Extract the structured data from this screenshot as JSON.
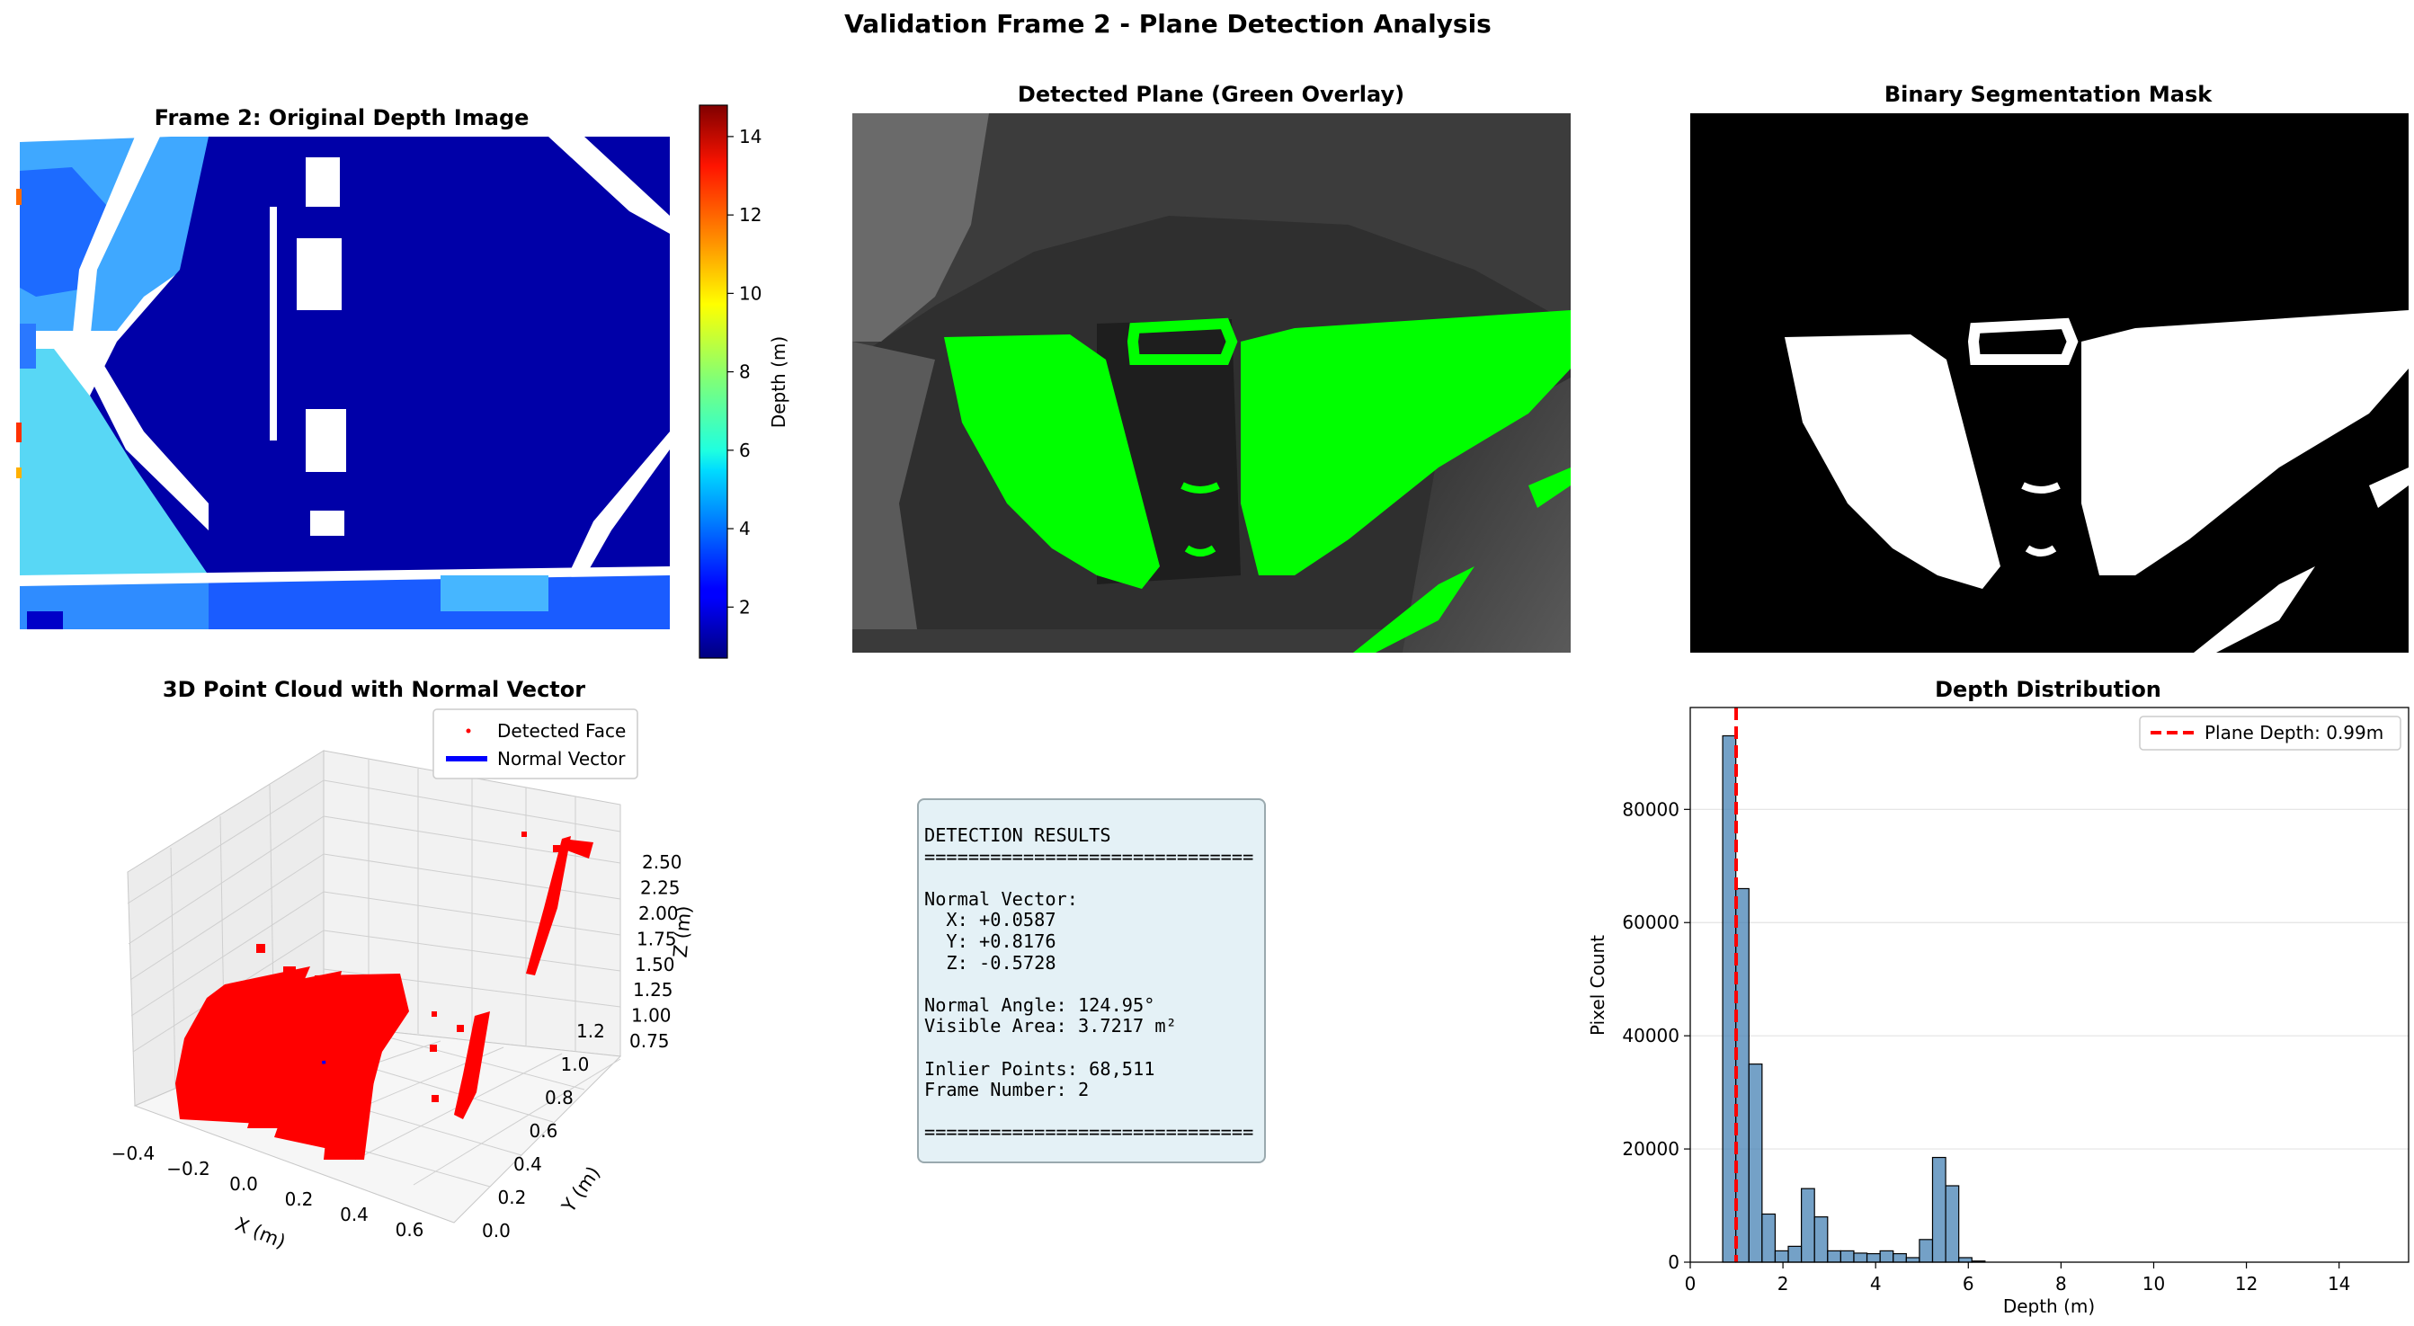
{
  "figure": {
    "suptitle": "Validation Frame 2 - Plane Detection Analysis"
  },
  "panels": {
    "depth_image": {
      "title": "Frame 2: Original Depth Image",
      "colorbar": {
        "label": "Depth (m)",
        "ticks": [
          "2",
          "4",
          "6",
          "8",
          "10",
          "12",
          "14"
        ],
        "range": [
          0.7,
          14.8
        ],
        "colormap": "jet"
      }
    },
    "overlay": {
      "title": "Detected Plane (Green Overlay)",
      "plane_color": "#00ff00"
    },
    "mask": {
      "title": "Binary Segmentation Mask"
    },
    "point_cloud": {
      "title": "3D Point Cloud with Normal Vector",
      "legend": [
        "Detected Face",
        "Normal Vector"
      ],
      "x_label": "X (m)",
      "y_label": "Y (m)",
      "z_label": "Z (m)",
      "x_ticks": [
        "−0.4",
        "−0.2",
        "0.0",
        "0.2",
        "0.4",
        "0.6"
      ],
      "y_ticks": [
        "0.0",
        "0.2",
        "0.4",
        "0.6",
        "0.8",
        "1.0",
        "1.2"
      ],
      "z_ticks": [
        "0.75",
        "1.00",
        "1.25",
        "1.50",
        "1.75",
        "2.00",
        "2.25",
        "2.50"
      ],
      "point_color": "#ff0000",
      "normal_color": "#0000ff"
    },
    "results": {
      "lines": [
        "DETECTION RESULTS",
        "==============================",
        "",
        "Normal Vector:",
        "  X: +0.0587",
        "  Y: +0.8176",
        "  Z: -0.5728",
        "",
        "Normal Angle: 124.95°",
        "Visible Area: 3.7217 m²",
        "",
        "Inlier Points: 68,511",
        "Frame Number: 2",
        "",
        "=============================="
      ]
    }
  },
  "chart_data": [
    {
      "type": "bar",
      "title": "Depth Distribution",
      "xlabel": "Depth (m)",
      "ylabel": "Pixel Count",
      "xlim": [
        0,
        15.5
      ],
      "ylim": [
        0,
        98000
      ],
      "x_ticks": [
        0,
        2,
        4,
        6,
        8,
        10,
        12,
        14
      ],
      "y_ticks": [
        0,
        20000,
        40000,
        60000,
        80000
      ],
      "grid": "y",
      "bar_color": "#4682b4",
      "bin_width": 0.283,
      "bin_start": 0.7,
      "values": [
        93000,
        66000,
        35000,
        8500,
        2000,
        2800,
        13000,
        8000,
        2000,
        2000,
        1600,
        1500,
        2000,
        1500,
        800,
        4000,
        18500,
        13500,
        800,
        200,
        0,
        0,
        0,
        0,
        0,
        0,
        0,
        0,
        0,
        0,
        0,
        0,
        0,
        0,
        0,
        0,
        0,
        0,
        0,
        0,
        0,
        0,
        0,
        0,
        0,
        0,
        0,
        0,
        0,
        0,
        0,
        0
      ],
      "reference_line": {
        "x": 0.99,
        "label": "Plane Depth: 0.99m",
        "color": "#ff0000"
      },
      "legend": "top-right"
    },
    {
      "type": "scatter",
      "title": "3D Point Cloud with Normal Vector",
      "series": [
        {
          "name": "Detected Face"
        },
        {
          "name": "Normal Vector"
        }
      ],
      "normal_vector": {
        "x": 0.0587,
        "y": 0.8176,
        "z": -0.5728
      },
      "xlim": [
        -0.45,
        0.7
      ],
      "ylim": [
        0.0,
        1.25
      ],
      "zlim": [
        0.7,
        2.6
      ]
    }
  ]
}
